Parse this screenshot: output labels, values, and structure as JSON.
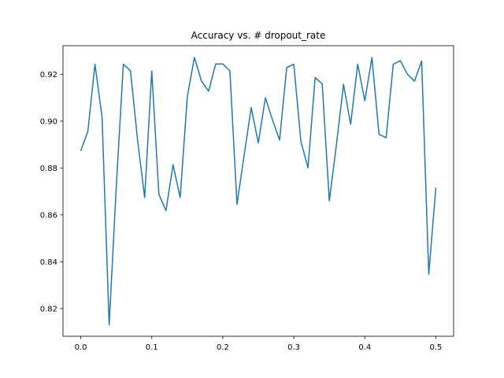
{
  "chart_data": {
    "type": "line",
    "title": "Accuracy vs. # dropout_rate",
    "xlabel": "",
    "ylabel": "",
    "xlim": [
      -0.025,
      0.525
    ],
    "ylim": [
      0.8082,
      0.9322
    ],
    "xticks": [
      0.0,
      0.1,
      0.2,
      0.3,
      0.4,
      0.5
    ],
    "xtick_labels": [
      "0.0",
      "0.1",
      "0.2",
      "0.3",
      "0.4",
      "0.5"
    ],
    "yticks": [
      0.82,
      0.84,
      0.86,
      0.88,
      0.9,
      0.92
    ],
    "ytick_labels": [
      "0.82",
      "0.84",
      "0.86",
      "0.88",
      "0.90",
      "0.92"
    ],
    "grid": false,
    "color": "#1f77b4",
    "series": [
      {
        "x": [
          0.0,
          0.01,
          0.02,
          0.03,
          0.04,
          0.05,
          0.06,
          0.07,
          0.08,
          0.09,
          0.1,
          0.11,
          0.12,
          0.13,
          0.14,
          0.15,
          0.16,
          0.17,
          0.18,
          0.19,
          0.2,
          0.21,
          0.22,
          0.23,
          0.24,
          0.25,
          0.26,
          0.27,
          0.28,
          0.29,
          0.3,
          0.31,
          0.32,
          0.33,
          0.34,
          0.35,
          0.36,
          0.37,
          0.38,
          0.39,
          0.4,
          0.41,
          0.42,
          0.43,
          0.44,
          0.45,
          0.46,
          0.47,
          0.48,
          0.49,
          0.5
        ],
        "values": [
          0.8873,
          0.8956,
          0.9243,
          0.9017,
          0.8131,
          0.872,
          0.9243,
          0.9215,
          0.8919,
          0.8674,
          0.9214,
          0.8688,
          0.8618,
          0.8814,
          0.8674,
          0.9103,
          0.9272,
          0.9171,
          0.9128,
          0.9244,
          0.9244,
          0.9214,
          0.8645,
          0.8853,
          0.9058,
          0.8907,
          0.91,
          0.9005,
          0.8919,
          0.9229,
          0.9243,
          0.8913,
          0.8801,
          0.9186,
          0.9159,
          0.866,
          0.8899,
          0.9157,
          0.8987,
          0.9243,
          0.9087,
          0.9272,
          0.8944,
          0.8929,
          0.9243,
          0.9258,
          0.92,
          0.9171,
          0.9257,
          0.8347,
          0.8716
        ]
      }
    ]
  }
}
